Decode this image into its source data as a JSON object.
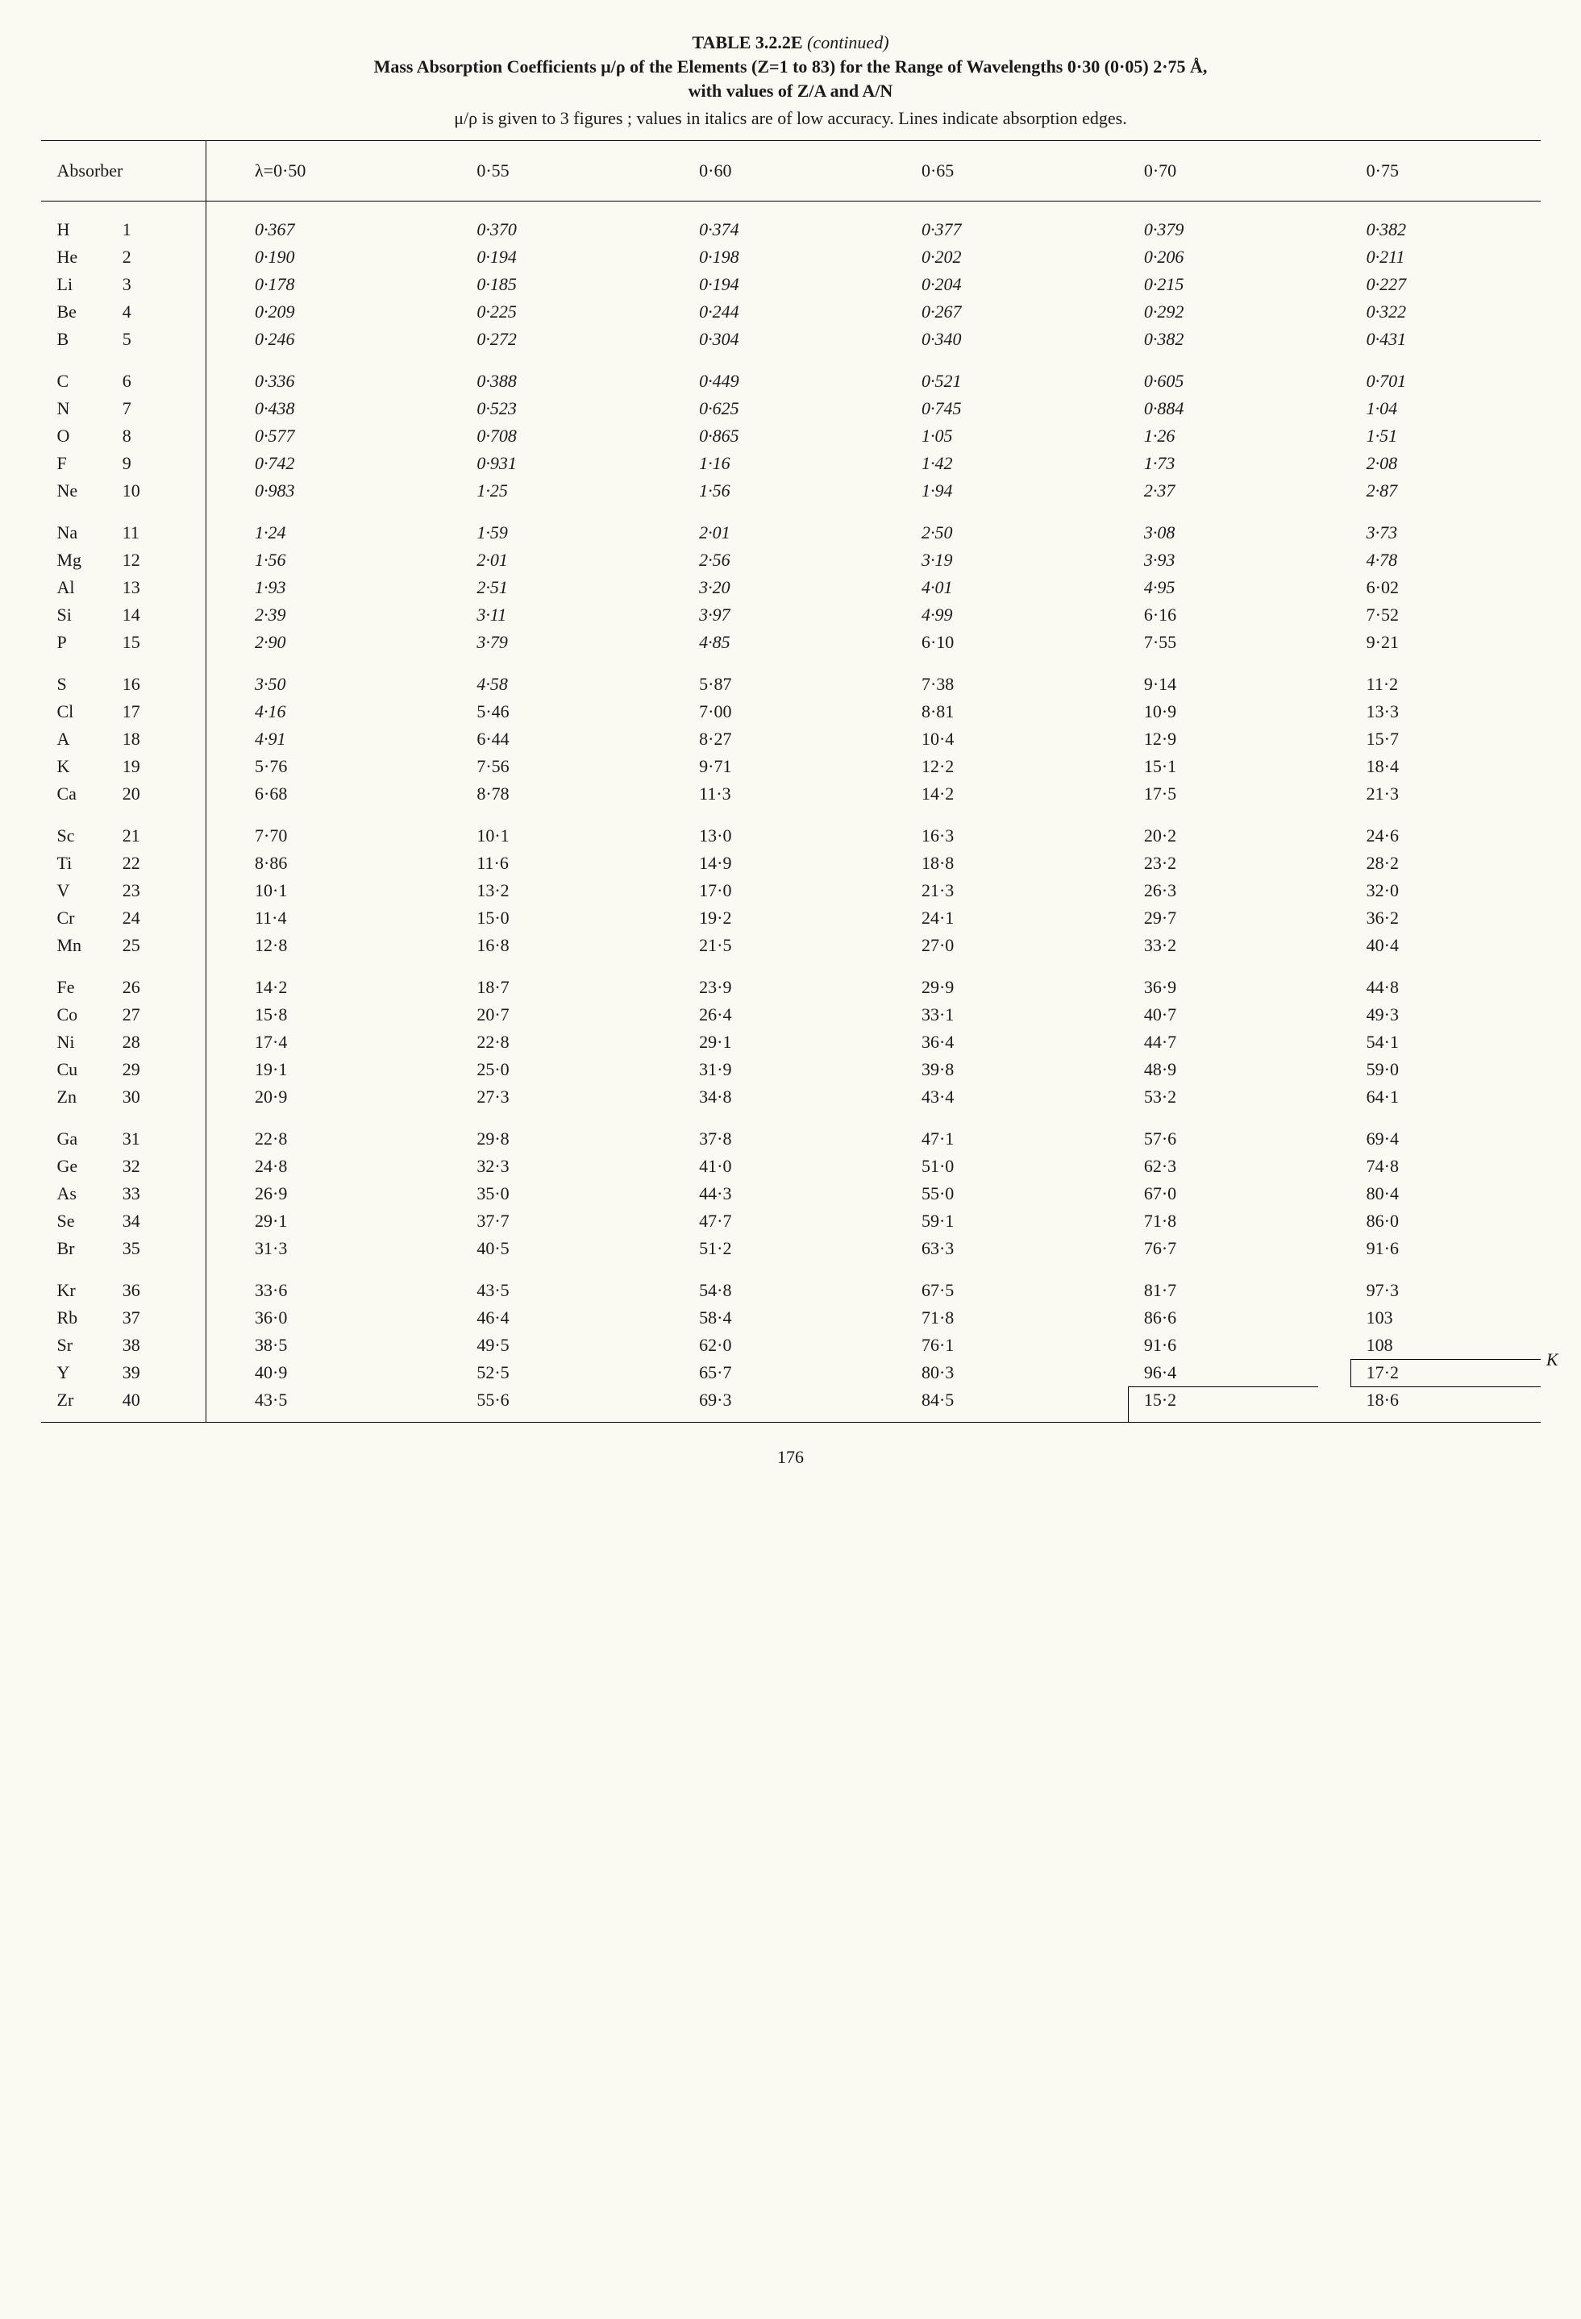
{
  "header": {
    "table_label": "TABLE 3.2.2E",
    "continued": "(continued)",
    "title_line1": "Mass Absorption Coefficients μ/ρ of the Elements (Z=1 to 83) for the Range of Wavelengths 0·30 (0·05) 2·75 Å,",
    "title_line2": "with values of Z/A and A/N",
    "note": "μ/ρ is given to 3 figures ; values in italics are of low accuracy.  Lines indicate absorption edges."
  },
  "columns": {
    "absorber": "Absorber",
    "lambda_label": "λ=0·50",
    "c2": "0·55",
    "c3": "0·60",
    "c4": "0·65",
    "c5": "0·70",
    "c6": "0·75"
  },
  "groups": [
    [
      {
        "sym": "H",
        "z": "1",
        "v": [
          "0·367",
          "0·370",
          "0·374",
          "0·377",
          "0·379",
          "0·382"
        ],
        "italic": [
          1,
          1,
          1,
          1,
          1,
          1
        ]
      },
      {
        "sym": "He",
        "z": "2",
        "v": [
          "0·190",
          "0·194",
          "0·198",
          "0·202",
          "0·206",
          "0·211"
        ],
        "italic": [
          1,
          1,
          1,
          1,
          1,
          1
        ]
      },
      {
        "sym": "Li",
        "z": "3",
        "v": [
          "0·178",
          "0·185",
          "0·194",
          "0·204",
          "0·215",
          "0·227"
        ],
        "italic": [
          1,
          1,
          1,
          1,
          1,
          1
        ]
      },
      {
        "sym": "Be",
        "z": "4",
        "v": [
          "0·209",
          "0·225",
          "0·244",
          "0·267",
          "0·292",
          "0·322"
        ],
        "italic": [
          1,
          1,
          1,
          1,
          1,
          1
        ]
      },
      {
        "sym": "B",
        "z": "5",
        "v": [
          "0·246",
          "0·272",
          "0·304",
          "0·340",
          "0·382",
          "0·431"
        ],
        "italic": [
          1,
          1,
          1,
          1,
          1,
          1
        ]
      }
    ],
    [
      {
        "sym": "C",
        "z": "6",
        "v": [
          "0·336",
          "0·388",
          "0·449",
          "0·521",
          "0·605",
          "0·701"
        ],
        "italic": [
          1,
          1,
          1,
          1,
          1,
          1
        ]
      },
      {
        "sym": "N",
        "z": "7",
        "v": [
          "0·438",
          "0·523",
          "0·625",
          "0·745",
          "0·884",
          "1·04"
        ],
        "italic": [
          1,
          1,
          1,
          1,
          1,
          1
        ]
      },
      {
        "sym": "O",
        "z": "8",
        "v": [
          "0·577",
          "0·708",
          "0·865",
          "1·05",
          "1·26",
          "1·51"
        ],
        "italic": [
          1,
          1,
          1,
          1,
          1,
          1
        ]
      },
      {
        "sym": "F",
        "z": "9",
        "v": [
          "0·742",
          "0·931",
          "1·16",
          "1·42",
          "1·73",
          "2·08"
        ],
        "italic": [
          1,
          1,
          1,
          1,
          1,
          1
        ]
      },
      {
        "sym": "Ne",
        "z": "10",
        "v": [
          "0·983",
          "1·25",
          "1·56",
          "1·94",
          "2·37",
          "2·87"
        ],
        "italic": [
          1,
          1,
          1,
          1,
          1,
          1
        ]
      }
    ],
    [
      {
        "sym": "Na",
        "z": "11",
        "v": [
          "1·24",
          "1·59",
          "2·01",
          "2·50",
          "3·08",
          "3·73"
        ],
        "italic": [
          1,
          1,
          1,
          1,
          1,
          1
        ]
      },
      {
        "sym": "Mg",
        "z": "12",
        "v": [
          "1·56",
          "2·01",
          "2·56",
          "3·19",
          "3·93",
          "4·78"
        ],
        "italic": [
          1,
          1,
          1,
          1,
          1,
          1
        ]
      },
      {
        "sym": "Al",
        "z": "13",
        "v": [
          "1·93",
          "2·51",
          "3·20",
          "4·01",
          "4·95",
          "6·02"
        ],
        "italic": [
          1,
          1,
          1,
          1,
          1,
          0
        ]
      },
      {
        "sym": "Si",
        "z": "14",
        "v": [
          "2·39",
          "3·11",
          "3·97",
          "4·99",
          "6·16",
          "7·52"
        ],
        "italic": [
          1,
          1,
          1,
          1,
          0,
          0
        ]
      },
      {
        "sym": "P",
        "z": "15",
        "v": [
          "2·90",
          "3·79",
          "4·85",
          "6·10",
          "7·55",
          "9·21"
        ],
        "italic": [
          1,
          1,
          1,
          0,
          0,
          0
        ]
      }
    ],
    [
      {
        "sym": "S",
        "z": "16",
        "v": [
          "3·50",
          "4·58",
          "5·87",
          "7·38",
          "9·14",
          "11·2"
        ],
        "italic": [
          1,
          1,
          0,
          0,
          0,
          0
        ]
      },
      {
        "sym": "Cl",
        "z": "17",
        "v": [
          "4·16",
          "5·46",
          "7·00",
          "8·81",
          "10·9",
          "13·3"
        ],
        "italic": [
          1,
          0,
          0,
          0,
          0,
          0
        ]
      },
      {
        "sym": "A",
        "z": "18",
        "v": [
          "4·91",
          "6·44",
          "8·27",
          "10·4",
          "12·9",
          "15·7"
        ],
        "italic": [
          1,
          0,
          0,
          0,
          0,
          0
        ]
      },
      {
        "sym": "K",
        "z": "19",
        "v": [
          "5·76",
          "7·56",
          "9·71",
          "12·2",
          "15·1",
          "18·4"
        ],
        "italic": [
          0,
          0,
          0,
          0,
          0,
          0
        ]
      },
      {
        "sym": "Ca",
        "z": "20",
        "v": [
          "6·68",
          "8·78",
          "11·3",
          "14·2",
          "17·5",
          "21·3"
        ],
        "italic": [
          0,
          0,
          0,
          0,
          0,
          0
        ]
      }
    ],
    [
      {
        "sym": "Sc",
        "z": "21",
        "v": [
          "7·70",
          "10·1",
          "13·0",
          "16·3",
          "20·2",
          "24·6"
        ],
        "italic": [
          0,
          0,
          0,
          0,
          0,
          0
        ]
      },
      {
        "sym": "Ti",
        "z": "22",
        "v": [
          "8·86",
          "11·6",
          "14·9",
          "18·8",
          "23·2",
          "28·2"
        ],
        "italic": [
          0,
          0,
          0,
          0,
          0,
          0
        ]
      },
      {
        "sym": "V",
        "z": "23",
        "v": [
          "10·1",
          "13·2",
          "17·0",
          "21·3",
          "26·3",
          "32·0"
        ],
        "italic": [
          0,
          0,
          0,
          0,
          0,
          0
        ]
      },
      {
        "sym": "Cr",
        "z": "24",
        "v": [
          "11·4",
          "15·0",
          "19·2",
          "24·1",
          "29·7",
          "36·2"
        ],
        "italic": [
          0,
          0,
          0,
          0,
          0,
          0
        ]
      },
      {
        "sym": "Mn",
        "z": "25",
        "v": [
          "12·8",
          "16·8",
          "21·5",
          "27·0",
          "33·2",
          "40·4"
        ],
        "italic": [
          0,
          0,
          0,
          0,
          0,
          0
        ]
      }
    ],
    [
      {
        "sym": "Fe",
        "z": "26",
        "v": [
          "14·2",
          "18·7",
          "23·9",
          "29·9",
          "36·9",
          "44·8"
        ],
        "italic": [
          0,
          0,
          0,
          0,
          0,
          0
        ]
      },
      {
        "sym": "Co",
        "z": "27",
        "v": [
          "15·8",
          "20·7",
          "26·4",
          "33·1",
          "40·7",
          "49·3"
        ],
        "italic": [
          0,
          0,
          0,
          0,
          0,
          0
        ]
      },
      {
        "sym": "Ni",
        "z": "28",
        "v": [
          "17·4",
          "22·8",
          "29·1",
          "36·4",
          "44·7",
          "54·1"
        ],
        "italic": [
          0,
          0,
          0,
          0,
          0,
          0
        ]
      },
      {
        "sym": "Cu",
        "z": "29",
        "v": [
          "19·1",
          "25·0",
          "31·9",
          "39·8",
          "48·9",
          "59·0"
        ],
        "italic": [
          0,
          0,
          0,
          0,
          0,
          0
        ]
      },
      {
        "sym": "Zn",
        "z": "30",
        "v": [
          "20·9",
          "27·3",
          "34·8",
          "43·4",
          "53·2",
          "64·1"
        ],
        "italic": [
          0,
          0,
          0,
          0,
          0,
          0
        ]
      }
    ],
    [
      {
        "sym": "Ga",
        "z": "31",
        "v": [
          "22·8",
          "29·8",
          "37·8",
          "47·1",
          "57·6",
          "69·4"
        ],
        "italic": [
          0,
          0,
          0,
          0,
          0,
          0
        ]
      },
      {
        "sym": "Ge",
        "z": "32",
        "v": [
          "24·8",
          "32·3",
          "41·0",
          "51·0",
          "62·3",
          "74·8"
        ],
        "italic": [
          0,
          0,
          0,
          0,
          0,
          0
        ]
      },
      {
        "sym": "As",
        "z": "33",
        "v": [
          "26·9",
          "35·0",
          "44·3",
          "55·0",
          "67·0",
          "80·4"
        ],
        "italic": [
          0,
          0,
          0,
          0,
          0,
          0
        ]
      },
      {
        "sym": "Se",
        "z": "34",
        "v": [
          "29·1",
          "37·7",
          "47·7",
          "59·1",
          "71·8",
          "86·0"
        ],
        "italic": [
          0,
          0,
          0,
          0,
          0,
          0
        ]
      },
      {
        "sym": "Br",
        "z": "35",
        "v": [
          "31·3",
          "40·5",
          "51·2",
          "63·3",
          "76·7",
          "91·6"
        ],
        "italic": [
          0,
          0,
          0,
          0,
          0,
          0
        ]
      }
    ],
    [
      {
        "sym": "Kr",
        "z": "36",
        "v": [
          "33·6",
          "43·5",
          "54·8",
          "67·5",
          "81·7",
          "97·3"
        ],
        "italic": [
          0,
          0,
          0,
          0,
          0,
          0
        ]
      },
      {
        "sym": "Rb",
        "z": "37",
        "v": [
          "36·0",
          "46·4",
          "58·4",
          "71·8",
          "86·6",
          "103"
        ],
        "italic": [
          0,
          0,
          0,
          0,
          0,
          0
        ]
      },
      {
        "sym": "Sr",
        "z": "38",
        "v": [
          "38·5",
          "49·5",
          "62·0",
          "76·1",
          "91·6",
          "108"
        ],
        "italic": [
          0,
          0,
          0,
          0,
          0,
          0
        ]
      },
      {
        "sym": "Y",
        "z": "39",
        "v": [
          "40·9",
          "52·5",
          "65·7",
          "80·3",
          "96·4",
          "17·2"
        ],
        "italic": [
          0,
          0,
          0,
          0,
          0,
          0
        ],
        "edge": {
          "col": 5,
          "label": "K"
        }
      },
      {
        "sym": "Zr",
        "z": "40",
        "v": [
          "43·5",
          "55·6",
          "69·3",
          "84·5",
          "15·2",
          "18·6"
        ],
        "italic": [
          0,
          0,
          0,
          0,
          0,
          0
        ],
        "edge": {
          "col": 4
        }
      }
    ]
  ],
  "page_number": "176"
}
